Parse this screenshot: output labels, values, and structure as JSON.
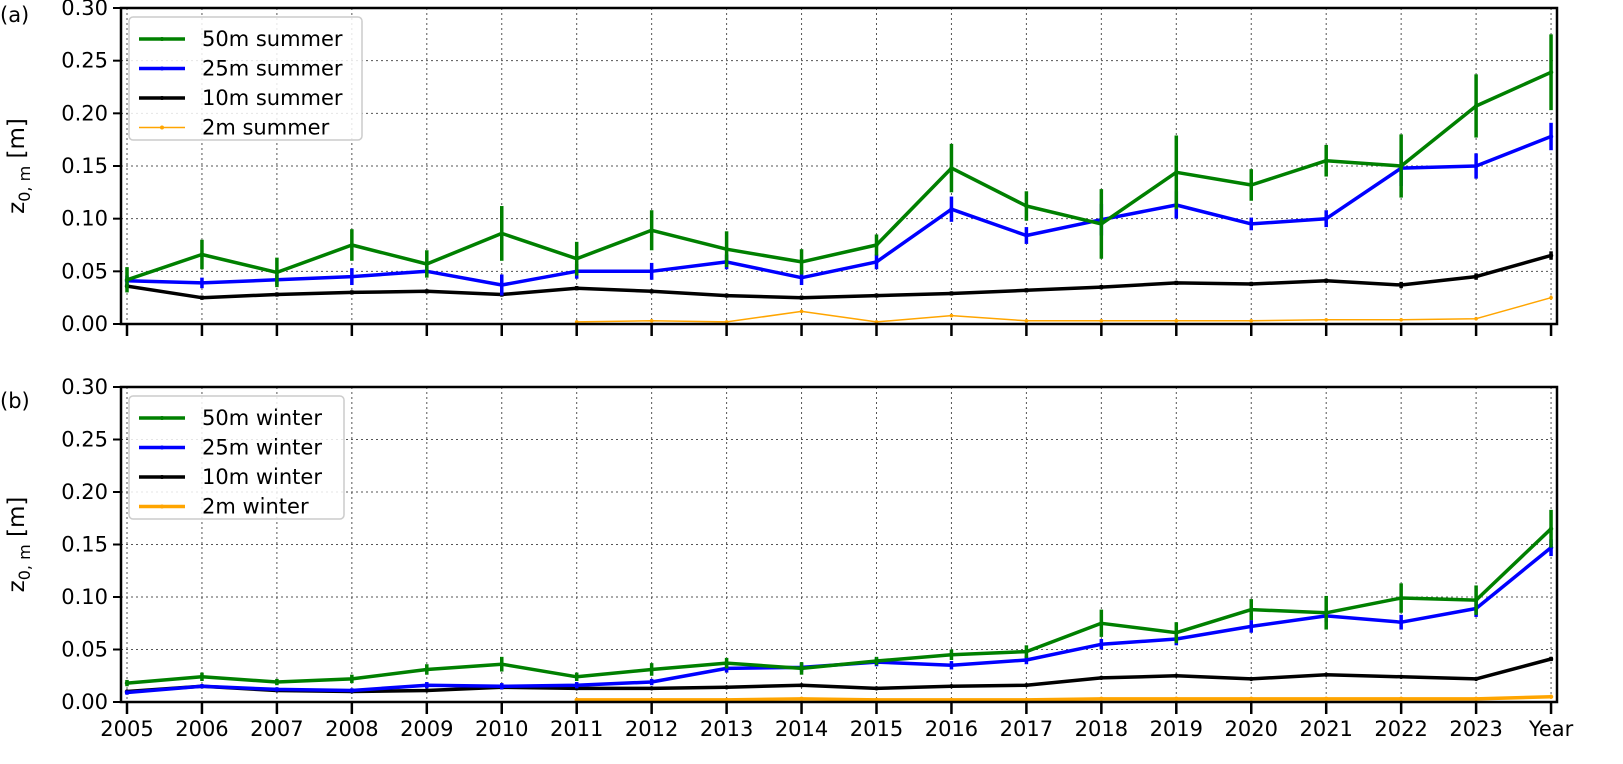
{
  "chart_data": [
    {
      "type": "line",
      "panel_label": "(a)",
      "ylabel": "z0,m [m]",
      "ylabel_main": "z",
      "ylabel_sub": "0, m",
      "ylabel_unit": " [m]",
      "ylim": [
        0,
        0.3
      ],
      "yticks": [
        "0.00",
        "0.05",
        "0.10",
        "0.15",
        "0.20",
        "0.25",
        "0.30"
      ],
      "x": [
        "2005",
        "2006",
        "2007",
        "2008",
        "2009",
        "2010",
        "2011",
        "2012",
        "2013",
        "2014",
        "2015",
        "2016",
        "2017",
        "2018",
        "2019",
        "2020",
        "2021",
        "2022",
        "2023",
        "Year"
      ],
      "xtick_labels_shown": false,
      "grid": true,
      "legend_placement": "top-left",
      "series": [
        {
          "name": "50m summer",
          "color": "#008000",
          "width": "thick",
          "values": [
            0.042,
            0.066,
            0.049,
            0.075,
            0.057,
            0.086,
            0.062,
            0.089,
            0.071,
            0.059,
            0.075,
            0.148,
            0.112,
            0.095,
            0.144,
            0.132,
            0.155,
            0.15,
            0.207,
            0.239
          ],
          "errors": [
            0.012,
            0.014,
            0.014,
            0.015,
            0.013,
            0.026,
            0.016,
            0.019,
            0.017,
            0.012,
            0.01,
            0.023,
            0.014,
            0.033,
            0.035,
            0.015,
            0.015,
            0.03,
            0.03,
            0.036
          ]
        },
        {
          "name": "25m summer",
          "color": "#0000ff",
          "width": "thick",
          "values": [
            0.041,
            0.039,
            0.042,
            0.045,
            0.05,
            0.037,
            0.05,
            0.05,
            0.059,
            0.044,
            0.059,
            0.109,
            0.084,
            0.099,
            0.113,
            0.095,
            0.1,
            0.148,
            0.15,
            0.178
          ],
          "errors": [
            0.005,
            0.005,
            0.005,
            0.008,
            0.005,
            0.01,
            0.007,
            0.008,
            0.007,
            0.007,
            0.007,
            0.012,
            0.008,
            0.015,
            0.013,
            0.006,
            0.008,
            0.017,
            0.012,
            0.013
          ]
        },
        {
          "name": "10m summer",
          "color": "#000000",
          "width": "thick",
          "values": [
            0.036,
            0.025,
            0.028,
            0.03,
            0.031,
            0.028,
            0.034,
            0.031,
            0.027,
            0.025,
            0.027,
            0.029,
            0.032,
            0.035,
            0.039,
            0.038,
            0.041,
            0.037,
            0.045,
            0.065
          ],
          "errors": [
            0.002,
            0.002,
            0.002,
            0.002,
            0.002,
            0.002,
            0.002,
            0.002,
            0.002,
            0.002,
            0.002,
            0.002,
            0.002,
            0.002,
            0.002,
            0.002,
            0.002,
            0.003,
            0.003,
            0.004
          ]
        },
        {
          "name": "2m summer",
          "color": "#ffa500",
          "width": "thin",
          "values": [
            null,
            null,
            null,
            null,
            null,
            null,
            0.002,
            0.003,
            0.002,
            0.012,
            0.002,
            0.008,
            0.003,
            0.003,
            0.003,
            0.003,
            0.004,
            0.004,
            0.005,
            0.025
          ],
          "errors": [
            null,
            null,
            null,
            null,
            null,
            null,
            0.0005,
            0.0005,
            0.0005,
            0.001,
            0.0005,
            0.001,
            0.0005,
            0.0005,
            0.0005,
            0.0005,
            0.0005,
            0.0005,
            0.0005,
            0.002
          ]
        }
      ]
    },
    {
      "type": "line",
      "panel_label": "(b)",
      "ylabel": "z0,m [m]",
      "ylabel_main": "z",
      "ylabel_sub": "0, m",
      "ylabel_unit": " [m]",
      "ylim": [
        0,
        0.3
      ],
      "yticks": [
        "0.00",
        "0.05",
        "0.10",
        "0.15",
        "0.20",
        "0.25",
        "0.30"
      ],
      "x": [
        "2005",
        "2006",
        "2007",
        "2008",
        "2009",
        "2010",
        "2011",
        "2012",
        "2013",
        "2014",
        "2015",
        "2016",
        "2017",
        "2018",
        "2019",
        "2020",
        "2021",
        "2022",
        "2023",
        "Year"
      ],
      "xtick_labels_shown": true,
      "grid": true,
      "legend_placement": "top-left",
      "series": [
        {
          "name": "50m winter",
          "color": "#008000",
          "width": "thick",
          "values": [
            0.018,
            0.024,
            0.019,
            0.022,
            0.031,
            0.036,
            0.024,
            0.031,
            0.037,
            0.032,
            0.039,
            0.045,
            0.048,
            0.075,
            0.066,
            0.088,
            0.085,
            0.099,
            0.097,
            0.165
          ],
          "errors": [
            0.003,
            0.004,
            0.003,
            0.004,
            0.005,
            0.007,
            0.004,
            0.006,
            0.005,
            0.006,
            0.004,
            0.005,
            0.006,
            0.013,
            0.01,
            0.01,
            0.016,
            0.014,
            0.014,
            0.018
          ]
        },
        {
          "name": "25m winter",
          "color": "#0000ff",
          "width": "thick",
          "values": [
            0.009,
            0.015,
            0.012,
            0.011,
            0.016,
            0.015,
            0.016,
            0.019,
            0.032,
            0.033,
            0.038,
            0.035,
            0.04,
            0.055,
            0.06,
            0.072,
            0.082,
            0.076,
            0.089,
            0.147
          ],
          "errors": [
            0.002,
            0.002,
            0.002,
            0.002,
            0.003,
            0.003,
            0.003,
            0.003,
            0.004,
            0.004,
            0.004,
            0.004,
            0.004,
            0.005,
            0.006,
            0.006,
            0.006,
            0.007,
            0.008,
            0.008
          ]
        },
        {
          "name": "10m winter",
          "color": "#000000",
          "width": "thick",
          "values": [
            0.01,
            0.015,
            0.011,
            0.01,
            0.011,
            0.014,
            0.013,
            0.013,
            0.014,
            0.016,
            0.013,
            0.015,
            0.016,
            0.023,
            0.025,
            0.022,
            0.026,
            0.024,
            0.022,
            0.041
          ],
          "errors": [
            0.001,
            0.001,
            0.001,
            0.001,
            0.001,
            0.001,
            0.001,
            0.001,
            0.001,
            0.001,
            0.001,
            0.001,
            0.001,
            0.001,
            0.001,
            0.001,
            0.001,
            0.001,
            0.001,
            0.002
          ]
        },
        {
          "name": "2m winter",
          "color": "#ffa500",
          "width": "thick",
          "values": [
            null,
            null,
            null,
            null,
            null,
            null,
            0.002,
            0.002,
            0.002,
            0.003,
            0.002,
            0.002,
            0.002,
            0.003,
            0.003,
            0.003,
            0.003,
            0.003,
            0.003,
            0.005
          ],
          "errors": [
            null,
            null,
            null,
            null,
            null,
            null,
            0.0003,
            0.0003,
            0.0003,
            0.0003,
            0.0003,
            0.0003,
            0.0003,
            0.0003,
            0.0003,
            0.0003,
            0.0003,
            0.0003,
            0.0003,
            0.0005
          ]
        }
      ]
    }
  ]
}
